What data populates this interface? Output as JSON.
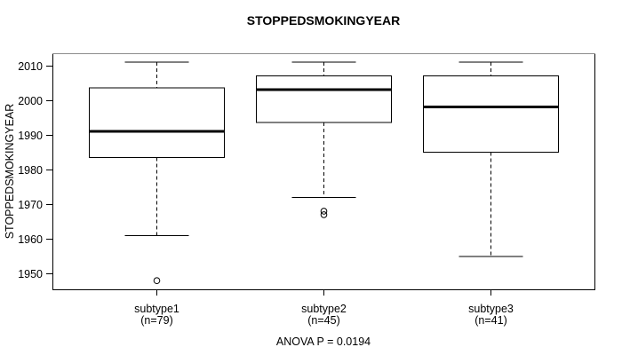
{
  "chart_data": {
    "type": "boxplot",
    "title": "STOPPEDSMOKINGYEAR",
    "ylabel": "STOPPEDSMOKINGYEAR",
    "xlabel": "",
    "annotation": "ANOVA P = 0.0194",
    "ylim": [
      1945.5,
      2013.5
    ],
    "yticks": [
      1950,
      1960,
      1970,
      1980,
      1990,
      2000,
      2010
    ],
    "grid": false,
    "legend": null,
    "groups": [
      {
        "label": "subtype1",
        "sublabel": "(n=79)",
        "n": 79,
        "whisker_low": 1961,
        "q1": 1983.5,
        "median": 1991,
        "q3": 2003.5,
        "whisker_high": 2011,
        "outliers": [
          1948
        ]
      },
      {
        "label": "subtype2",
        "sublabel": "(n=45)",
        "n": 45,
        "whisker_low": 1972,
        "q1": 1993.5,
        "median": 2003,
        "q3": 2007,
        "whisker_high": 2011,
        "outliers": [
          1968,
          1967
        ]
      },
      {
        "label": "subtype3",
        "sublabel": "(n=41)",
        "n": 41,
        "whisker_low": 1955,
        "q1": 1985,
        "median": 1998,
        "q3": 2007,
        "whisker_high": 2011,
        "outliers": []
      }
    ],
    "colors": {
      "line": "#000000",
      "frame_top": "#8c8c8c",
      "box_fill": "#ffffff",
      "background": "#ffffff"
    }
  }
}
